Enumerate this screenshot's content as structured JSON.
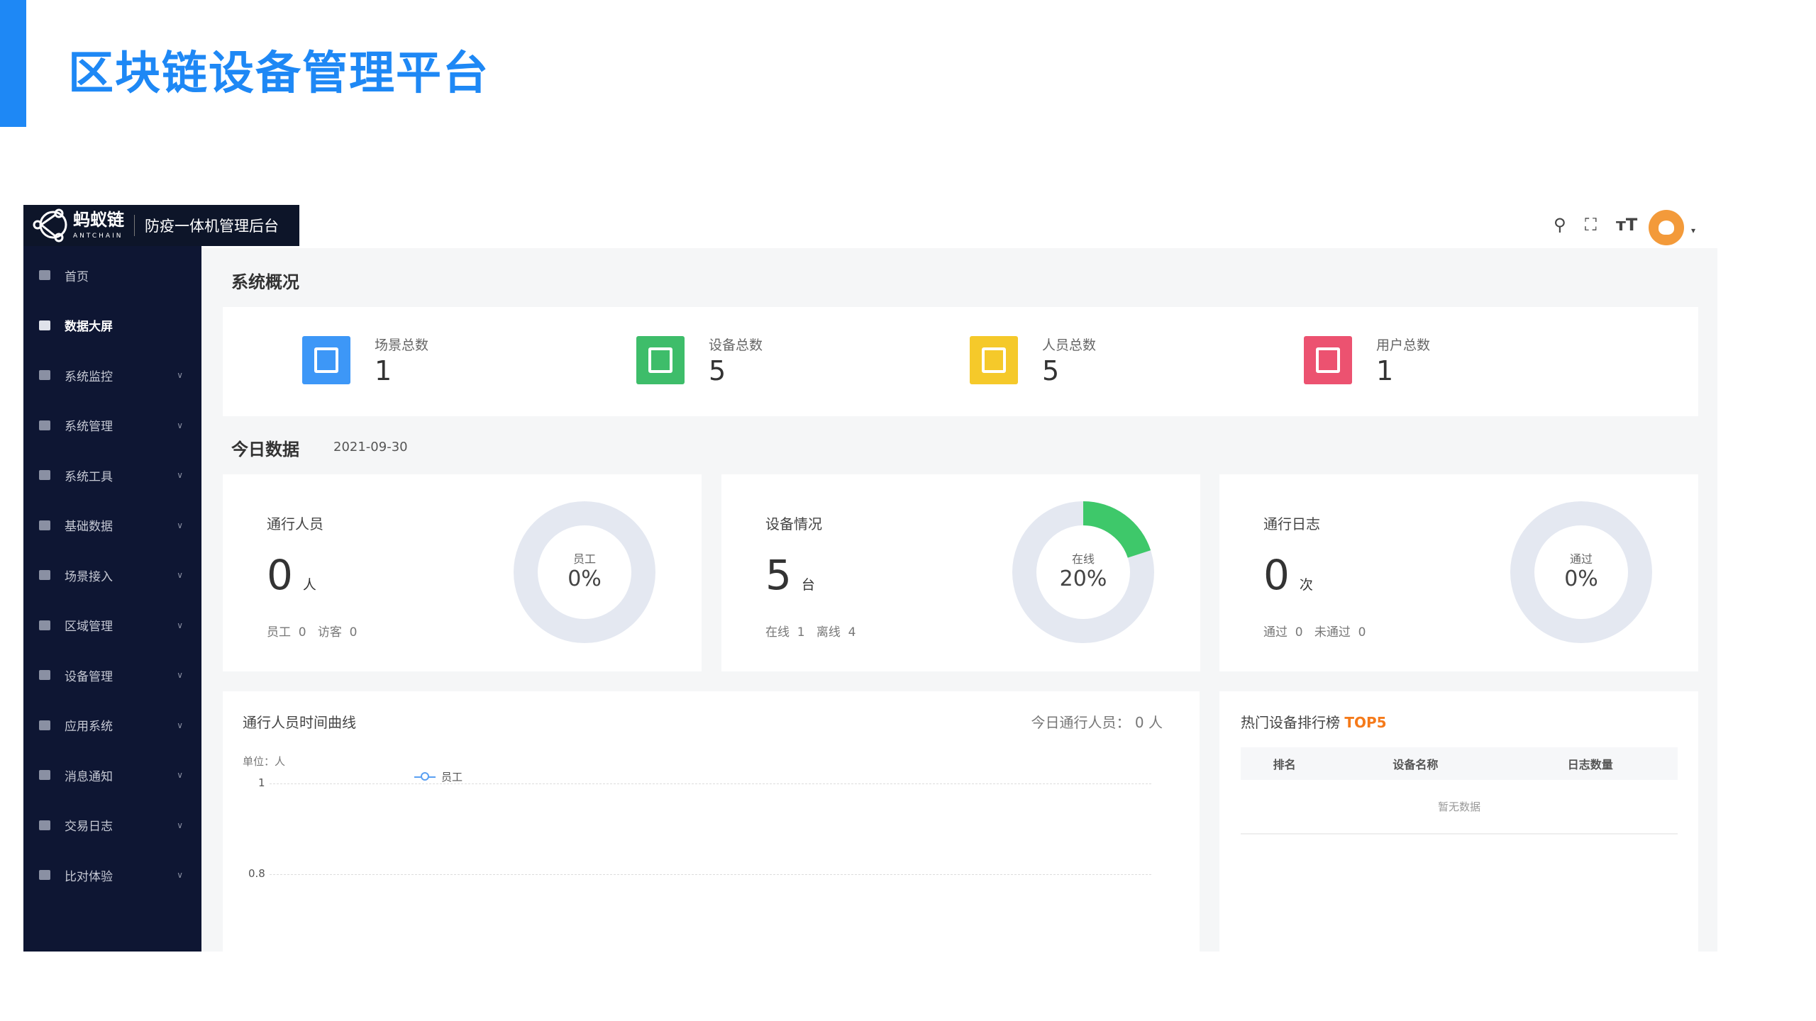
{
  "page_title": "区块链设备管理平台",
  "header": {
    "brand": "蚂蚁链",
    "brand_en": "ANTCHAIN",
    "subtitle": "防疫一体机管理后台",
    "icons": [
      "search-icon",
      "fullscreen-icon",
      "font-size-icon",
      "avatar"
    ]
  },
  "sidebar": {
    "items": [
      {
        "label": "首页",
        "icon": "monitor-icon"
      },
      {
        "label": "数据大屏",
        "icon": "screen-icon",
        "active": true
      },
      {
        "label": "系统监控",
        "icon": "dashboard-icon",
        "expandable": true
      },
      {
        "label": "系统管理",
        "icon": "gear-icon",
        "expandable": true
      },
      {
        "label": "系统工具",
        "icon": "tool-icon",
        "expandable": true
      },
      {
        "label": "基础数据",
        "icon": "tree-icon",
        "expandable": true
      },
      {
        "label": "场景接入",
        "icon": "cluster-icon",
        "expandable": true
      },
      {
        "label": "区域管理",
        "icon": "user-icon",
        "expandable": true
      },
      {
        "label": "设备管理",
        "icon": "list-icon",
        "expandable": true
      },
      {
        "label": "应用系统",
        "icon": "apps-icon",
        "expandable": true
      },
      {
        "label": "消息通知",
        "icon": "message-icon",
        "expandable": true
      },
      {
        "label": "交易日志",
        "icon": "log-icon",
        "expandable": true
      },
      {
        "label": "比对体验",
        "icon": "compare-icon",
        "expandable": true
      }
    ]
  },
  "overview": {
    "title": "系统概况",
    "stats": [
      {
        "label": "场景总数",
        "value": "1",
        "color": "#3d97f7",
        "icon": "building-icon"
      },
      {
        "label": "设备总数",
        "value": "5",
        "color": "#3ebd6a",
        "icon": "server-icon"
      },
      {
        "label": "人员总数",
        "value": "5",
        "color": "#f5c92a",
        "icon": "contact-card-icon"
      },
      {
        "label": "用户总数",
        "value": "1",
        "color": "#ec5270",
        "icon": "home-user-icon"
      }
    ]
  },
  "today": {
    "title": "今日数据",
    "date": "2021-09-30",
    "cards": [
      {
        "name": "通行人员",
        "value": "0",
        "unit": "人",
        "foot": "员工  0   访客  0",
        "donut_label": "员工",
        "donut_value": "0%",
        "percent": 0
      },
      {
        "name": "设备情况",
        "value": "5",
        "unit": "台",
        "foot": "在线  1   离线  4",
        "donut_label": "在线",
        "donut_value": "20%",
        "percent": 20
      },
      {
        "name": "通行日志",
        "value": "0",
        "unit": "次",
        "foot": "通过  0   未通过  0",
        "donut_label": "通过",
        "donut_value": "0%",
        "percent": 0
      }
    ]
  },
  "colors": {
    "accent": "#1e88f5",
    "donut_fill": "#3ec86a",
    "donut_track": "#e4e8f1",
    "top5": "#f57a1a"
  },
  "line_panel": {
    "title": "通行人员时间曲线",
    "summary": "今日通行人员： 0 人"
  },
  "chart_data": {
    "type": "line",
    "ylabel": "单位：人",
    "yticks": [
      "1",
      "0.8"
    ],
    "series": [
      {
        "name": "员工",
        "values": []
      }
    ],
    "grid": true,
    "legend": "top-center"
  },
  "ranking": {
    "title": "热门设备排行榜",
    "badge": "TOP5",
    "columns": [
      "排名",
      "设备名称",
      "日志数量"
    ],
    "empty": "暂无数据"
  }
}
